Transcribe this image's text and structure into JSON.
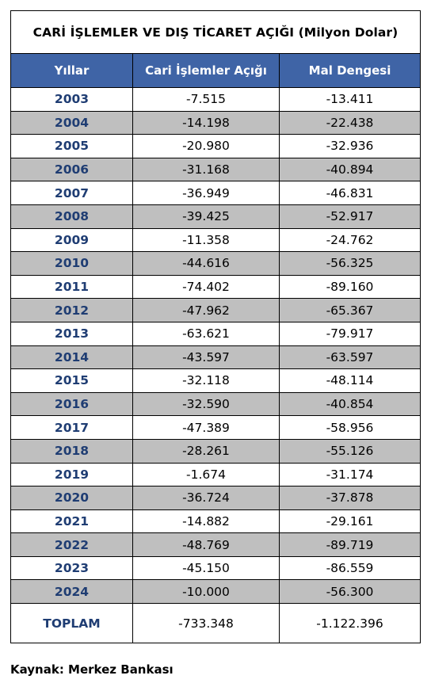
{
  "table": {
    "title": "CARİ İŞLEMLER VE DIŞ TİCARET AÇIĞI (Milyon Dolar)",
    "headers": [
      "Yıllar",
      "Cari İşlemler Açığı",
      "Mal Dengesi"
    ],
    "rows": [
      {
        "year": "2003",
        "current": "-7.515",
        "goods": "-13.411"
      },
      {
        "year": "2004",
        "current": "-14.198",
        "goods": "-22.438"
      },
      {
        "year": "2005",
        "current": "-20.980",
        "goods": "-32.936"
      },
      {
        "year": "2006",
        "current": "-31.168",
        "goods": "-40.894"
      },
      {
        "year": "2007",
        "current": "-36.949",
        "goods": "-46.831"
      },
      {
        "year": "2008",
        "current": "-39.425",
        "goods": "-52.917"
      },
      {
        "year": "2009",
        "current": "-11.358",
        "goods": "-24.762"
      },
      {
        "year": "2010",
        "current": "-44.616",
        "goods": "-56.325"
      },
      {
        "year": "2011",
        "current": "-74.402",
        "goods": "-89.160"
      },
      {
        "year": "2012",
        "current": "-47.962",
        "goods": "-65.367"
      },
      {
        "year": "2013",
        "current": "-63.621",
        "goods": "-79.917"
      },
      {
        "year": "2014",
        "current": "-43.597",
        "goods": "-63.597"
      },
      {
        "year": "2015",
        "current": "-32.118",
        "goods": "-48.114"
      },
      {
        "year": "2016",
        "current": "-32.590",
        "goods": "-40.854"
      },
      {
        "year": "2017",
        "current": "-47.389",
        "goods": "-58.956"
      },
      {
        "year": "2018",
        "current": "-28.261",
        "goods": "-55.126"
      },
      {
        "year": "2019",
        "current": "-1.674",
        "goods": "-31.174"
      },
      {
        "year": "2020",
        "current": "-36.724",
        "goods": "-37.878"
      },
      {
        "year": "2021",
        "current": "-14.882",
        "goods": "-29.161"
      },
      {
        "year": "2022",
        "current": "-48.769",
        "goods": "-89.719"
      },
      {
        "year": "2023",
        "current": "-45.150",
        "goods": "-86.559"
      },
      {
        "year": "2024",
        "current": "-10.000",
        "goods": "-56.300"
      }
    ],
    "total": {
      "label": "TOPLAM",
      "current": "-733.348",
      "goods": "-1.122.396"
    }
  },
  "source": "Kaynak: Merkez Bankası",
  "colors": {
    "header_bg": "#3f64a6",
    "alt_row_bg": "#bfbfbf",
    "year_text": "#1f3d73"
  }
}
